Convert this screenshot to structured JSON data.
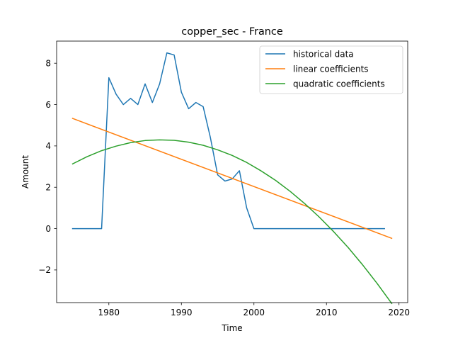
{
  "chart_data": {
    "type": "line",
    "title": "copper_sec - France",
    "xlabel": "Time",
    "ylabel": "Amount",
    "xlim": [
      1972.8,
      2021.2
    ],
    "ylim": [
      -3.58,
      9.07
    ],
    "x_ticks": [
      1980,
      1990,
      2000,
      2010,
      2020
    ],
    "y_ticks": [
      -2,
      0,
      2,
      4,
      6,
      8
    ],
    "grid": false,
    "legend_position": "upper-right",
    "series": [
      {
        "name": "historical data",
        "color": "#1f77b4",
        "x": [
          1975,
          1976,
          1977,
          1978,
          1979,
          1980,
          1981,
          1982,
          1983,
          1984,
          1985,
          1986,
          1987,
          1988,
          1989,
          1990,
          1991,
          1992,
          1993,
          1994,
          1995,
          1996,
          1997,
          1998,
          1999,
          2000,
          2001,
          2002,
          2003,
          2004,
          2005,
          2006,
          2007,
          2008,
          2009,
          2010,
          2011,
          2012,
          2013,
          2014,
          2015,
          2016,
          2017,
          2018
        ],
        "y": [
          0,
          0,
          0,
          0,
          0,
          7.3,
          6.5,
          6.0,
          6.3,
          6.0,
          7.0,
          6.1,
          7.0,
          8.5,
          8.4,
          6.6,
          5.8,
          6.1,
          5.9,
          4.4,
          2.6,
          2.3,
          2.4,
          2.8,
          1.0,
          0,
          0,
          0,
          0,
          0,
          0,
          0,
          0,
          0,
          0,
          0,
          0,
          0,
          0,
          0,
          0,
          0,
          0,
          0
        ]
      },
      {
        "name": "linear coefficients",
        "color": "#ff7f0e",
        "x": [
          1975,
          2019
        ],
        "y": [
          5.33,
          -0.47
        ]
      },
      {
        "name": "quadratic coefficients",
        "color": "#2ca02c",
        "x": [
          1975,
          1977,
          1979,
          1981,
          1983,
          1985,
          1987,
          1989,
          1991,
          1993,
          1995,
          1997,
          1999,
          2001,
          2003,
          2005,
          2007,
          2009,
          2011,
          2013,
          2015,
          2017,
          2019
        ],
        "y": [
          3.13,
          3.48,
          3.77,
          3.99,
          4.16,
          4.26,
          4.29,
          4.27,
          4.18,
          4.03,
          3.81,
          3.54,
          3.2,
          2.79,
          2.33,
          1.8,
          1.21,
          0.56,
          -0.15,
          -0.92,
          -1.76,
          -2.66,
          -3.62
        ]
      }
    ]
  }
}
